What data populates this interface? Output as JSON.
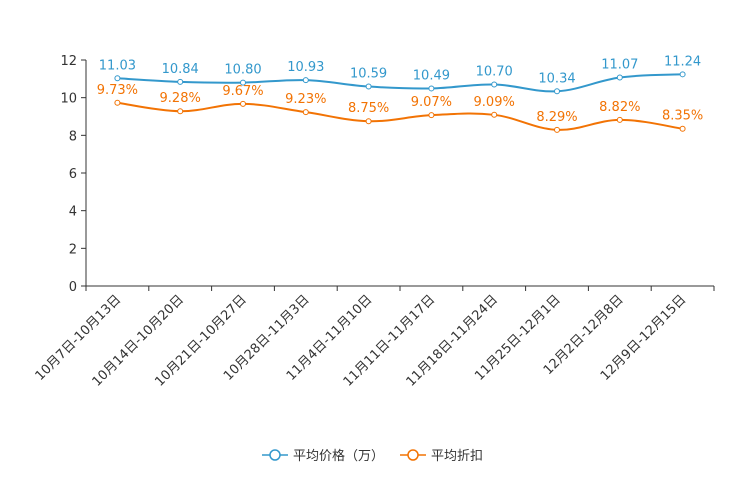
{
  "chart_data": {
    "type": "line",
    "title": "",
    "xlabel": "",
    "ylabel": "",
    "ylim": [
      0,
      12
    ],
    "yticks": [
      0,
      2,
      4,
      6,
      8,
      10,
      12
    ],
    "grid": false,
    "legend_position": "bottom-center",
    "categories": [
      "10月7日-10月13日",
      "10月14日-10月20日",
      "10月21日-10月27日",
      "10月28日-11月3日",
      "11月4日-11月10日",
      "11月11日-11月17日",
      "11月18日-11月24日",
      "11月25日-12月1日",
      "12月2日-12月8日",
      "12月9日-12月15日"
    ],
    "series": [
      {
        "name": "平均价格（万）",
        "color": "#3398CC",
        "values": [
          11.03,
          10.84,
          10.8,
          10.93,
          10.59,
          10.49,
          10.7,
          10.34,
          11.07,
          11.24
        ],
        "labels": [
          "11.03",
          "10.84",
          "10.80",
          "10.93",
          "10.59",
          "10.49",
          "10.70",
          "10.34",
          "11.07",
          "11.24"
        ]
      },
      {
        "name": "平均折扣",
        "color": "#F27304",
        "values": [
          9.73,
          9.28,
          9.67,
          9.23,
          8.75,
          9.07,
          9.09,
          8.29,
          8.82,
          8.35
        ],
        "labels": [
          "9.73%",
          "9.28%",
          "9.67%",
          "9.23%",
          "8.75%",
          "9.07%",
          "9.09%",
          "8.29%",
          "8.82%",
          "8.35%"
        ]
      }
    ]
  }
}
